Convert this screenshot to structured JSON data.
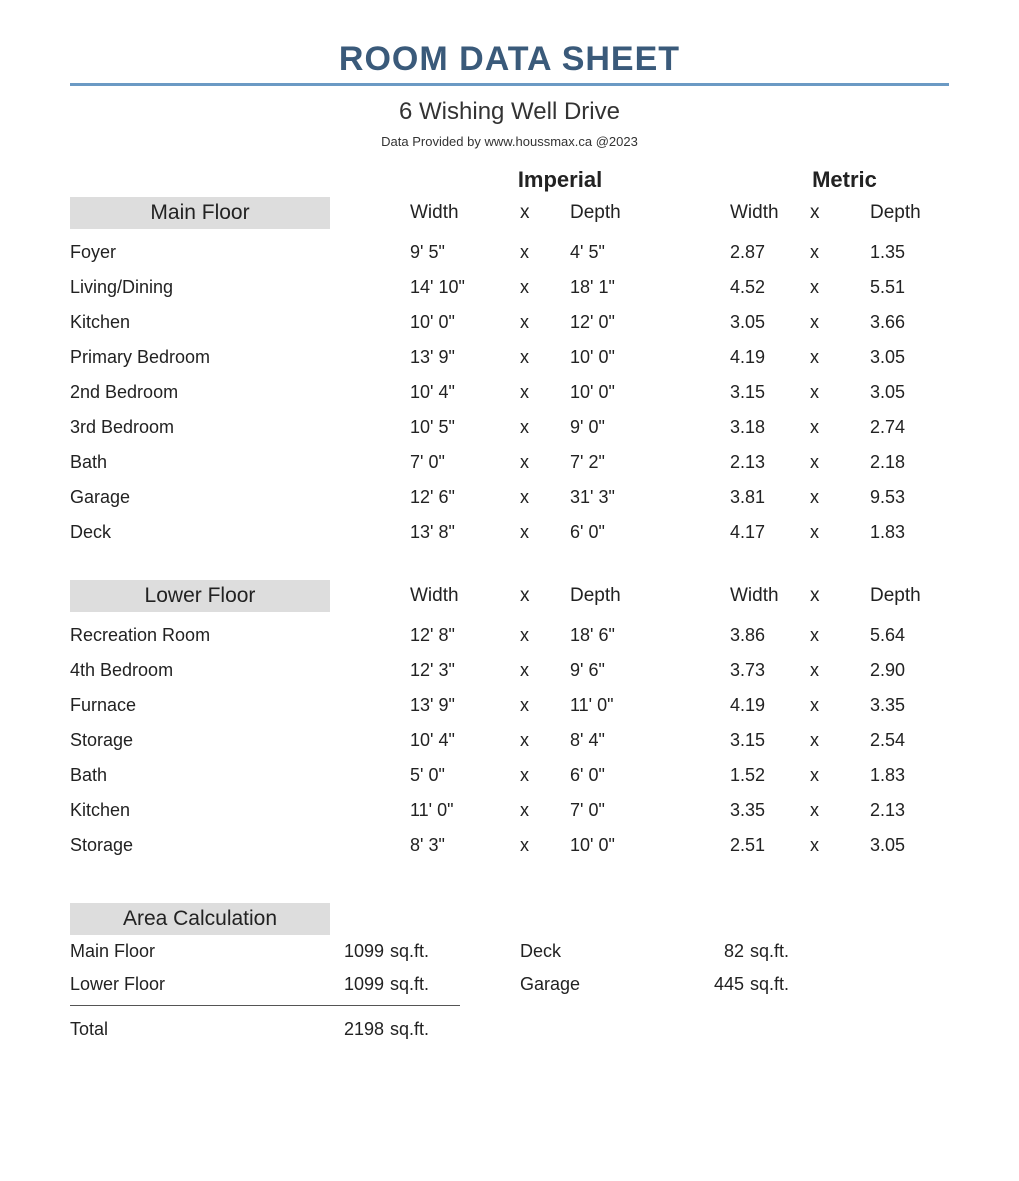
{
  "title": "ROOM DATA SHEET",
  "address": "6 Wishing Well Drive",
  "providedBy": "Data Provided by www.houssmax.ca @2023",
  "unitLabels": {
    "imperial": "Imperial",
    "metric": "Metric"
  },
  "columnLabels": {
    "width": "Width",
    "x": "x",
    "depth": "Depth"
  },
  "colors": {
    "titleColor": "#3a5a7a",
    "ruleColor": "#6b9ac4",
    "sectionBg": "#dddddd",
    "background": "#ffffff",
    "text": "#222222"
  },
  "fonts": {
    "family": "Verdana",
    "titleSize": 34,
    "subtitleSize": 24,
    "bodySize": 18
  },
  "floors": [
    {
      "name": "Main Floor",
      "rooms": [
        {
          "name": "Foyer",
          "impW": "9' 5\"",
          "impD": "4' 5\"",
          "metW": "2.87",
          "metD": "1.35"
        },
        {
          "name": "Living/Dining",
          "impW": "14' 10\"",
          "impD": "18' 1\"",
          "metW": "4.52",
          "metD": "5.51"
        },
        {
          "name": "Kitchen",
          "impW": "10' 0\"",
          "impD": "12' 0\"",
          "metW": "3.05",
          "metD": "3.66"
        },
        {
          "name": "Primary Bedroom",
          "impW": "13' 9\"",
          "impD": "10' 0\"",
          "metW": "4.19",
          "metD": "3.05"
        },
        {
          "name": "2nd Bedroom",
          "impW": "10' 4\"",
          "impD": "10' 0\"",
          "metW": "3.15",
          "metD": "3.05"
        },
        {
          "name": "3rd Bedroom",
          "impW": "10' 5\"",
          "impD": "9' 0\"",
          "metW": "3.18",
          "metD": "2.74"
        },
        {
          "name": "Bath",
          "impW": "7' 0\"",
          "impD": "7' 2\"",
          "metW": "2.13",
          "metD": "2.18"
        },
        {
          "name": "Garage",
          "impW": "12' 6\"",
          "impD": "31' 3\"",
          "metW": "3.81",
          "metD": "9.53"
        },
        {
          "name": "Deck",
          "impW": "13' 8\"",
          "impD": "6' 0\"",
          "metW": "4.17",
          "metD": "1.83"
        }
      ]
    },
    {
      "name": "Lower Floor",
      "rooms": [
        {
          "name": "Recreation Room",
          "impW": "12' 8\"",
          "impD": "18' 6\"",
          "metW": "3.86",
          "metD": "5.64"
        },
        {
          "name": "4th Bedroom",
          "impW": "12' 3\"",
          "impD": "9' 6\"",
          "metW": "3.73",
          "metD": "2.90"
        },
        {
          "name": "Furnace",
          "impW": "13' 9\"",
          "impD": "11' 0\"",
          "metW": "4.19",
          "metD": "3.35"
        },
        {
          "name": "Storage",
          "impW": "10' 4\"",
          "impD": "8' 4\"",
          "metW": "3.15",
          "metD": "2.54"
        },
        {
          "name": "Bath",
          "impW": "5' 0\"",
          "impD": "6' 0\"",
          "metW": "1.52",
          "metD": "1.83"
        },
        {
          "name": "Kitchen",
          "impW": "11' 0\"",
          "impD": "7' 0\"",
          "metW": "3.35",
          "metD": "2.13"
        },
        {
          "name": "Storage",
          "impW": "8' 3\"",
          "impD": "10' 0\"",
          "metW": "2.51",
          "metD": "3.05"
        }
      ]
    }
  ],
  "areaCalc": {
    "heading": "Area Calculation",
    "unit": "sq.ft.",
    "left": [
      {
        "label": "Main Floor",
        "value": "1099"
      },
      {
        "label": "Lower Floor",
        "value": "1099"
      }
    ],
    "total": {
      "label": "Total",
      "value": "2198"
    },
    "right": [
      {
        "label": "Deck",
        "value": "82"
      },
      {
        "label": "Garage",
        "value": "445"
      }
    ]
  }
}
